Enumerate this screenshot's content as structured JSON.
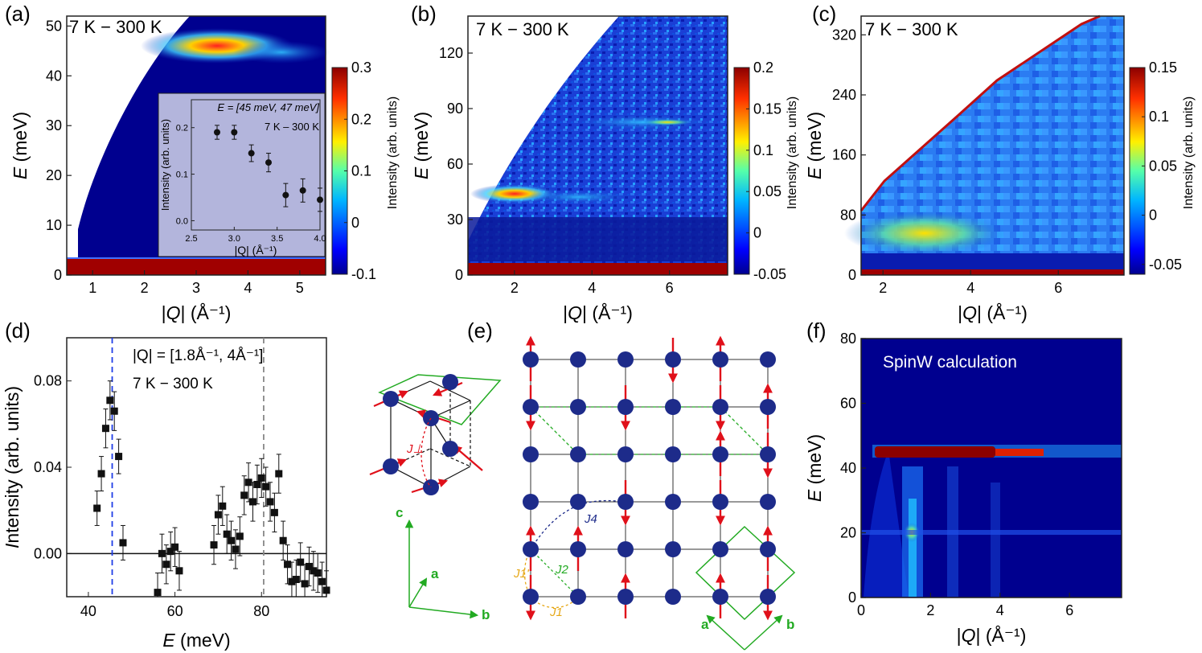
{
  "panel_labels": [
    "(a)",
    "(b)",
    "(c)",
    "(d)",
    "(e)",
    "(f)"
  ],
  "colors": {
    "heat_low": "#00008f",
    "heat_mid": "#17c2ff",
    "heat_hi": "#ffe000",
    "heat_top": "#8c0000",
    "lattice_atom": "#1d2b8a",
    "spin": "#e0101a",
    "green": "#22aa22",
    "blue_line": "#1f3de6",
    "grey_line": "#888888",
    "inset_bg": "#b3b5dc"
  },
  "chart_data": [
    {
      "panel": "(a)",
      "type": "heatmap",
      "annotation": "7 K − 300 K",
      "xlabel": "|Q| (Å⁻¹)",
      "ylabel": "E (meV)",
      "xlim": [
        0.5,
        5.5
      ],
      "ylim": [
        0,
        52
      ],
      "xticks": [
        "1",
        "2",
        "3",
        "4",
        "5"
      ],
      "yticks": [
        "0",
        "10",
        "20",
        "30",
        "40",
        "50"
      ],
      "colorbar": {
        "label": "Intensity (arb. units)",
        "range": [
          -0.1,
          0.3
        ],
        "ticks": [
          "0.3",
          "0.2",
          "0.1",
          "0",
          "-0.1"
        ]
      },
      "features": [
        {
          "name": "mode",
          "E": 45,
          "Q_range": [
            2.8,
            5.5
          ]
        },
        {
          "name": "elastic",
          "E_range": [
            0,
            3.5
          ]
        }
      ],
      "inset": {
        "type": "scatter",
        "title_lines": [
          "E = [45 meV, 47 meV]",
          "7 K – 300 K"
        ],
        "xlabel": "|Q| (Å⁻¹)",
        "ylabel": "Intensity (arb. units)",
        "xlim": [
          2.5,
          4.0
        ],
        "ylim": [
          -0.02,
          0.26
        ],
        "xticks": [
          "2.5",
          "3.0",
          "3.5",
          "4.0"
        ],
        "yticks": [
          "0.0",
          "0.1",
          "0.2"
        ],
        "x": [
          2.8,
          3.0,
          3.2,
          3.4,
          3.6,
          3.8,
          4.0
        ],
        "y": [
          0.19,
          0.19,
          0.145,
          0.125,
          0.055,
          0.065,
          0.045
        ],
        "err": [
          0.015,
          0.015,
          0.018,
          0.02,
          0.025,
          0.025,
          0.025
        ]
      }
    },
    {
      "panel": "(b)",
      "type": "heatmap",
      "annotation": "7 K − 300 K",
      "xlabel": "|Q| (Å⁻¹)",
      "ylabel": "E (meV)",
      "xlim": [
        0.8,
        7.5
      ],
      "ylim": [
        0,
        140
      ],
      "xticks": [
        "2",
        "4",
        "6"
      ],
      "yticks": [
        "0",
        "30",
        "60",
        "90",
        "120"
      ],
      "colorbar": {
        "label": "Intensity (arb. units)",
        "range": [
          -0.05,
          0.2
        ],
        "ticks": [
          "0.2",
          "0.15",
          "0.1",
          "0.05",
          "0",
          "-0.05"
        ]
      },
      "features": [
        {
          "name": "mode",
          "E": 45
        },
        {
          "name": "mode",
          "E": 82
        }
      ]
    },
    {
      "panel": "(c)",
      "type": "heatmap",
      "annotation": "7 K − 300 K",
      "xlabel": "|Q| (Å⁻¹)",
      "ylabel": "E (meV)",
      "xlim": [
        1.5,
        7.5
      ],
      "ylim": [
        0,
        345
      ],
      "xticks": [
        "2",
        "4",
        "6"
      ],
      "yticks": [
        "0",
        "80",
        "160",
        "240",
        "320"
      ],
      "colorbar": {
        "label": "Intensity (arb. units)",
        "range": [
          -0.06,
          0.15
        ],
        "ticks": [
          "0.15",
          "0.1",
          "0.05",
          "0",
          "-0.05"
        ]
      },
      "features": [
        {
          "name": "band",
          "E_range": [
            40,
            100
          ]
        }
      ]
    },
    {
      "panel": "(d)",
      "type": "scatter",
      "annotation_lines": [
        "|Q| = [1.8Å⁻¹, 4Å⁻¹]",
        "7 K − 300 K"
      ],
      "xlabel": "E (meV)",
      "ylabel": "Intensity (arb. units)",
      "xlim": [
        35,
        95
      ],
      "ylim": [
        -0.02,
        0.1
      ],
      "xticks": [
        "40",
        "60",
        "80"
      ],
      "yticks": [
        "0.00",
        "0.04",
        "0.08"
      ],
      "vlines": [
        {
          "x": 45.5,
          "color": "#1f3de6",
          "style": "dashed"
        },
        {
          "x": 80.5,
          "color": "#888888",
          "style": "dashed"
        }
      ],
      "hline": 0,
      "x": [
        42,
        43,
        44,
        45,
        46,
        47,
        48,
        56,
        57,
        58,
        59,
        60,
        61,
        69,
        70,
        71,
        72,
        73,
        74,
        75,
        76,
        77,
        78,
        79,
        80,
        81,
        82,
        83,
        84,
        85,
        86,
        87,
        88,
        89,
        90,
        91,
        92,
        93,
        94,
        95
      ],
      "y": [
        0.021,
        0.037,
        0.058,
        0.071,
        0.066,
        0.045,
        0.005,
        -0.018,
        0.0,
        -0.005,
        0.001,
        0.003,
        -0.008,
        0.004,
        0.018,
        0.022,
        0.009,
        0.006,
        0.002,
        0.008,
        0.027,
        0.033,
        0.024,
        0.032,
        0.035,
        0.031,
        0.024,
        0.019,
        0.037,
        0.006,
        -0.005,
        -0.013,
        -0.012,
        -0.004,
        -0.014,
        -0.006,
        -0.008,
        -0.009,
        -0.013,
        -0.017
      ],
      "err": [
        0.008,
        0.008,
        0.009,
        0.009,
        0.009,
        0.008,
        0.008,
        0.009,
        0.009,
        0.009,
        0.009,
        0.009,
        0.009,
        0.009,
        0.009,
        0.009,
        0.009,
        0.009,
        0.009,
        0.009,
        0.009,
        0.009,
        0.009,
        0.009,
        0.009,
        0.009,
        0.009,
        0.009,
        0.009,
        0.009,
        0.009,
        0.009,
        0.009,
        0.009,
        0.009,
        0.009,
        0.009,
        0.009,
        0.009,
        0.009
      ]
    },
    {
      "panel": "(f)",
      "type": "heatmap",
      "annotation": "SpinW calculation",
      "xlabel": "|Q| (Å⁻¹)",
      "ylabel": "E (meV)",
      "xlim": [
        0,
        7.5
      ],
      "ylim": [
        0,
        80
      ],
      "xticks": [
        "0",
        "2",
        "4",
        "6"
      ],
      "yticks": [
        "0",
        "20",
        "40",
        "60",
        "80"
      ],
      "features": [
        {
          "name": "flat mode",
          "E": 45
        },
        {
          "name": "streaks",
          "Q": [
            1.4,
            2.8
          ]
        }
      ]
    }
  ],
  "diagram": {
    "panel": "(e)",
    "axis_labels": {
      "c": "c",
      "a": "a",
      "b": "b",
      "a2": "a",
      "b2": "b"
    },
    "couplings": {
      "j_perp": "J⊥",
      "j1": "J1",
      "j1p": "J1'",
      "j2": "J2",
      "j4": "J4"
    }
  }
}
